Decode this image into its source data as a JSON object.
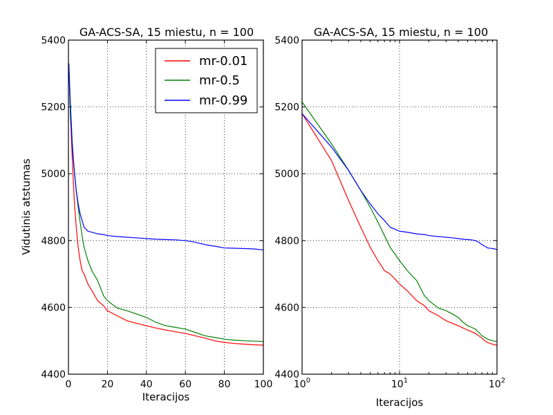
{
  "colors": {
    "mr_001": "#ff0000",
    "mr_05": "#008000",
    "mr_099": "#0000ff"
  },
  "chart_data": [
    {
      "type": "line",
      "title": "GA-ACS-SA, 15 miestu, n = 100",
      "xlabel": "Iteracijos",
      "ylabel": "Vidutinis atstumas",
      "xscale": "linear",
      "xlim": [
        0,
        100
      ],
      "ylim": [
        4400,
        5400
      ],
      "xticks": [
        0,
        20,
        40,
        60,
        80,
        100
      ],
      "xtick_labels": [
        "0",
        "20",
        "40",
        "60",
        "80",
        "100"
      ],
      "yticks": [
        4400,
        4600,
        4800,
        5000,
        5200,
        5400
      ],
      "ytick_labels": [
        "4400",
        "4600",
        "4800",
        "5000",
        "5200",
        "5400"
      ],
      "grid": true,
      "legend": "top-right",
      "series": [
        {
          "name": "mr-0.01",
          "color": "#ff0000",
          "x": [
            1,
            2,
            3,
            4,
            5,
            6,
            7,
            8,
            10,
            12,
            15,
            18,
            20,
            25,
            30,
            35,
            40,
            45,
            50,
            55,
            60,
            65,
            70,
            75,
            80,
            85,
            90,
            95,
            100
          ],
          "y": [
            5180,
            5040,
            4920,
            4840,
            4780,
            4740,
            4710,
            4700,
            4670,
            4650,
            4620,
            4605,
            4590,
            4575,
            4560,
            4552,
            4545,
            4538,
            4532,
            4527,
            4522,
            4515,
            4508,
            4500,
            4495,
            4492,
            4490,
            4488,
            4487
          ]
        },
        {
          "name": "mr-0.5",
          "color": "#008000",
          "x": [
            1,
            2,
            3,
            4,
            5,
            6,
            7,
            8,
            10,
            12,
            15,
            18,
            20,
            25,
            30,
            35,
            40,
            45,
            50,
            55,
            60,
            65,
            70,
            75,
            80,
            85,
            90,
            95,
            100
          ],
          "y": [
            5215,
            5090,
            5010,
            4950,
            4900,
            4855,
            4815,
            4780,
            4740,
            4710,
            4680,
            4635,
            4620,
            4598,
            4590,
            4580,
            4570,
            4555,
            4545,
            4540,
            4535,
            4525,
            4515,
            4510,
            4505,
            4502,
            4500,
            4499,
            4498
          ]
        },
        {
          "name": "mr-0.99",
          "color": "#0000ff",
          "x": [
            1,
            2,
            3,
            4,
            5,
            6,
            7,
            8,
            10,
            12,
            15,
            18,
            20,
            25,
            30,
            35,
            40,
            45,
            50,
            55,
            60,
            65,
            70,
            75,
            80,
            85,
            90,
            95,
            100
          ],
          "y": [
            5180,
            5080,
            5010,
            4950,
            4910,
            4880,
            4860,
            4840,
            4828,
            4825,
            4820,
            4818,
            4815,
            4812,
            4810,
            4808,
            4806,
            4804,
            4803,
            4802,
            4800,
            4795,
            4788,
            4783,
            4778,
            4777,
            4776,
            4775,
            4772
          ]
        }
      ]
    },
    {
      "type": "line",
      "title": "GA-ACS-SA, 15 miestu, n = 100",
      "xlabel": "Iteracijos",
      "ylabel": "",
      "xscale": "log",
      "xlim": [
        1,
        100
      ],
      "ylim": [
        4400,
        5400
      ],
      "xticks": [
        1,
        10,
        100
      ],
      "xtick_labels": [
        {
          "base": "10",
          "exp": "0"
        },
        {
          "base": "10",
          "exp": "1"
        },
        {
          "base": "10",
          "exp": "2"
        }
      ],
      "yticks": [
        4400,
        4600,
        4800,
        5000,
        5200,
        5400
      ],
      "ytick_labels": [
        "4400",
        "4600",
        "4800",
        "5000",
        "5200",
        "5400"
      ],
      "grid": true,
      "series": [
        {
          "name": "mr-0.01",
          "color": "#ff0000",
          "x": [
            1,
            2,
            3,
            4,
            5,
            6,
            7,
            8,
            10,
            12,
            15,
            18,
            20,
            25,
            30,
            35,
            40,
            45,
            50,
            55,
            60,
            65,
            70,
            75,
            80,
            85,
            90,
            95,
            100
          ],
          "y": [
            5180,
            5040,
            4920,
            4840,
            4780,
            4740,
            4710,
            4700,
            4670,
            4650,
            4620,
            4605,
            4590,
            4575,
            4560,
            4552,
            4545,
            4538,
            4532,
            4527,
            4522,
            4515,
            4508,
            4500,
            4495,
            4492,
            4490,
            4488,
            4487
          ]
        },
        {
          "name": "mr-0.5",
          "color": "#008000",
          "x": [
            1,
            2,
            3,
            4,
            5,
            6,
            7,
            8,
            10,
            12,
            15,
            18,
            20,
            25,
            30,
            35,
            40,
            45,
            50,
            55,
            60,
            65,
            70,
            75,
            80,
            85,
            90,
            95,
            100
          ],
          "y": [
            5215,
            5090,
            5010,
            4950,
            4900,
            4855,
            4815,
            4780,
            4740,
            4710,
            4680,
            4635,
            4620,
            4598,
            4590,
            4580,
            4570,
            4555,
            4545,
            4540,
            4535,
            4525,
            4515,
            4510,
            4505,
            4502,
            4500,
            4499,
            4498
          ]
        },
        {
          "name": "mr-0.99",
          "color": "#0000ff",
          "x": [
            1,
            2,
            3,
            4,
            5,
            6,
            7,
            8,
            10,
            12,
            15,
            18,
            20,
            25,
            30,
            35,
            40,
            45,
            50,
            55,
            60,
            65,
            70,
            75,
            80,
            85,
            90,
            95,
            100
          ],
          "y": [
            5180,
            5080,
            5010,
            4950,
            4910,
            4880,
            4860,
            4840,
            4828,
            4825,
            4820,
            4818,
            4815,
            4812,
            4810,
            4808,
            4806,
            4804,
            4803,
            4802,
            4800,
            4795,
            4788,
            4783,
            4778,
            4777,
            4776,
            4775,
            4772
          ]
        }
      ]
    }
  ]
}
